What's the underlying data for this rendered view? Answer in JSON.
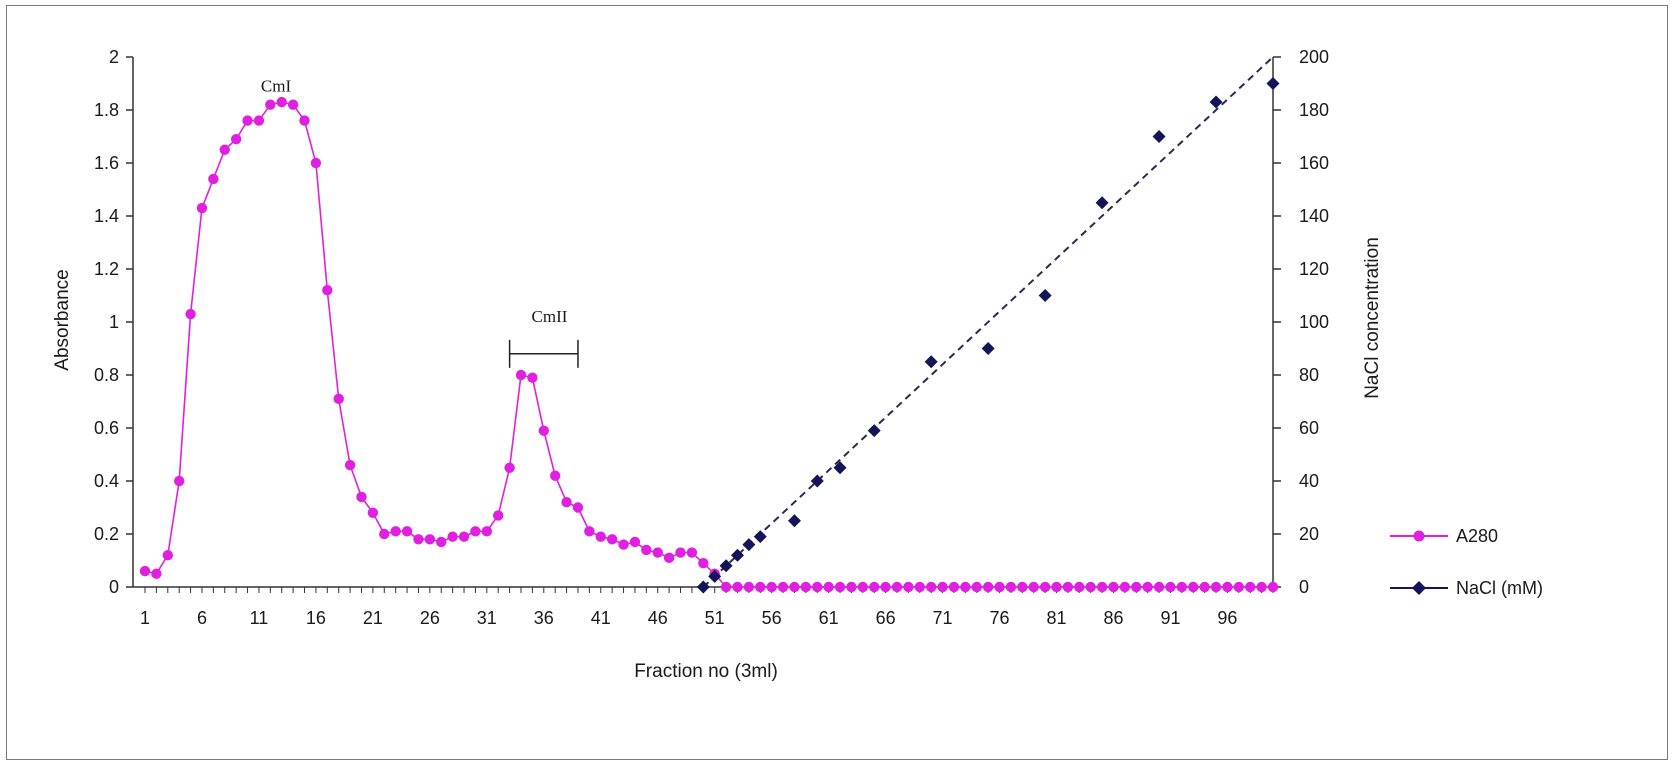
{
  "chart_data": {
    "type": "line",
    "xlabel": "Fraction no (3ml)",
    "ylabel": "Absorbance",
    "y2label": "NaCl concentration",
    "xlim": [
      1,
      100
    ],
    "ylim": [
      0,
      2
    ],
    "y2lim": [
      0,
      200
    ],
    "x_tick_labels": [
      "1",
      "6",
      "11",
      "16",
      "21",
      "26",
      "31",
      "36",
      "41",
      "46",
      "51",
      "56",
      "61",
      "66",
      "71",
      "76",
      "81",
      "86",
      "91",
      "96"
    ],
    "y_tick_labels": [
      "0",
      "0.2",
      "0.4",
      "0.6",
      "0.8",
      "1",
      "1.2",
      "1.4",
      "1.6",
      "1.8",
      "2"
    ],
    "y2_tick_labels": [
      "0",
      "20",
      "40",
      "60",
      "80",
      "100",
      "120",
      "140",
      "160",
      "180",
      "200"
    ],
    "grid": false,
    "legend_position": "right",
    "series": [
      {
        "name": "A280",
        "axis": "left",
        "color": "#e020e0",
        "marker": "circle",
        "x": [
          1,
          2,
          3,
          4,
          5,
          6,
          7,
          8,
          9,
          10,
          11,
          12,
          13,
          14,
          15,
          16,
          17,
          18,
          19,
          20,
          21,
          22,
          23,
          24,
          25,
          26,
          27,
          28,
          29,
          30,
          31,
          32,
          33,
          34,
          35,
          36,
          37,
          38,
          39,
          40,
          41,
          42,
          43,
          44,
          45,
          46,
          47,
          48,
          49,
          50,
          51,
          52,
          53,
          54,
          55,
          56,
          57,
          58,
          59,
          60,
          61,
          62,
          63,
          64,
          65,
          66,
          67,
          68,
          69,
          70,
          71,
          72,
          73,
          74,
          75,
          76,
          77,
          78,
          79,
          80,
          81,
          82,
          83,
          84,
          85,
          86,
          87,
          88,
          89,
          90,
          91,
          92,
          93,
          94,
          95,
          96,
          97,
          98,
          99,
          100
        ],
        "values": [
          0.06,
          0.05,
          0.12,
          0.4,
          1.03,
          1.43,
          1.54,
          1.65,
          1.69,
          1.76,
          1.76,
          1.82,
          1.83,
          1.82,
          1.76,
          1.6,
          1.12,
          0.71,
          0.46,
          0.34,
          0.28,
          0.2,
          0.21,
          0.21,
          0.18,
          0.18,
          0.17,
          0.19,
          0.19,
          0.21,
          0.21,
          0.27,
          0.45,
          0.8,
          0.79,
          0.59,
          0.42,
          0.32,
          0.3,
          0.21,
          0.19,
          0.18,
          0.16,
          0.17,
          0.14,
          0.13,
          0.11,
          0.13,
          0.13,
          0.09,
          0.05,
          0,
          0,
          0,
          0,
          0,
          0,
          0,
          0,
          0,
          0,
          0,
          0,
          0,
          0,
          0,
          0,
          0,
          0,
          0,
          0,
          0,
          0,
          0,
          0,
          0,
          0,
          0,
          0,
          0,
          0,
          0,
          0,
          0,
          0,
          0,
          0,
          0,
          0,
          0,
          0,
          0,
          0,
          0,
          0,
          0,
          0,
          0,
          0,
          0
        ]
      },
      {
        "name": "NaCl (mM)",
        "axis": "right",
        "color": "#14145a",
        "marker": "diamond",
        "x": [
          50,
          51,
          52,
          53,
          54,
          55,
          58,
          60,
          62,
          65,
          70,
          75,
          80,
          85,
          90,
          95,
          100
        ],
        "values": [
          0,
          4,
          8,
          12,
          16,
          19,
          25,
          40,
          45,
          59,
          85,
          90,
          110,
          145,
          170,
          183,
          190
        ]
      }
    ],
    "trendline": {
      "series": "NaCl (mM)",
      "style": "dashed",
      "from": [
        50,
        0
      ],
      "to": [
        100,
        200
      ],
      "color": "#2a2a50"
    },
    "annotations": [
      {
        "text": "CmI",
        "x": 12.5,
        "y": 1.87
      },
      {
        "text": "CmII",
        "x": 36.5,
        "y": 1.0,
        "bracket": [
          33,
          39
        ],
        "bracket_y": 0.88
      }
    ]
  }
}
